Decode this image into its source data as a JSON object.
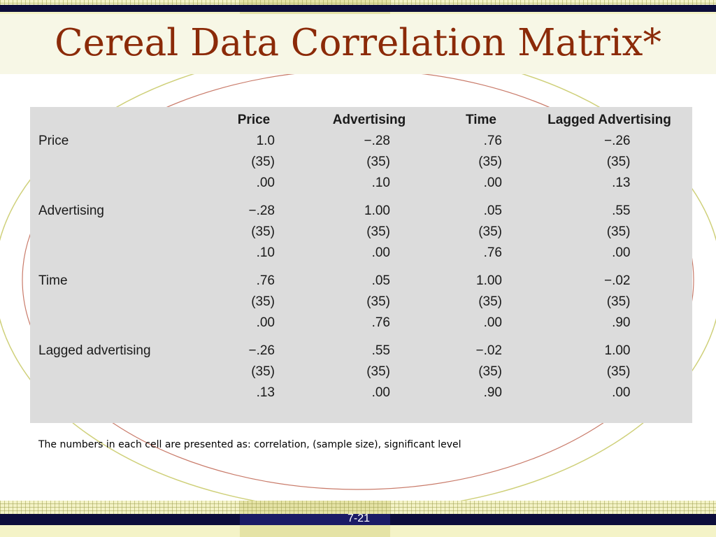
{
  "slide": {
    "title": "Cereal Data Correlation Matrix*",
    "footnote": "The numbers in each cell are presented as: correlation, (sample size), significant level",
    "page_number": "7-21"
  },
  "table": {
    "headers": [
      "",
      "Price",
      "Advertising",
      "Time",
      "Lagged Advertising"
    ],
    "rows": [
      {
        "label": "Price",
        "cells": [
          [
            "1.0",
            "(35)",
            ".00"
          ],
          [
            "−.28",
            "(35)",
            ".10"
          ],
          [
            ".76",
            "(35)",
            ".00"
          ],
          [
            "−.26",
            "(35)",
            ".13"
          ]
        ]
      },
      {
        "label": "Advertising",
        "cells": [
          [
            "−.28",
            "(35)",
            ".10"
          ],
          [
            "1.00",
            "(35)",
            ".00"
          ],
          [
            ".05",
            "(35)",
            ".76"
          ],
          [
            ".55",
            "(35)",
            ".00"
          ]
        ]
      },
      {
        "label": "Time",
        "cells": [
          [
            ".76",
            "(35)",
            ".00"
          ],
          [
            ".05",
            "(35)",
            ".76"
          ],
          [
            "1.00",
            "(35)",
            ".00"
          ],
          [
            "−.02",
            "(35)",
            ".90"
          ]
        ]
      },
      {
        "label": "Lagged advertising",
        "cells": [
          [
            "−.26",
            "(35)",
            ".13"
          ],
          [
            ".55",
            "(35)",
            ".00"
          ],
          [
            "−.02",
            "(35)",
            ".90"
          ],
          [
            "1.00",
            "(35)",
            ".00"
          ]
        ]
      }
    ]
  }
}
